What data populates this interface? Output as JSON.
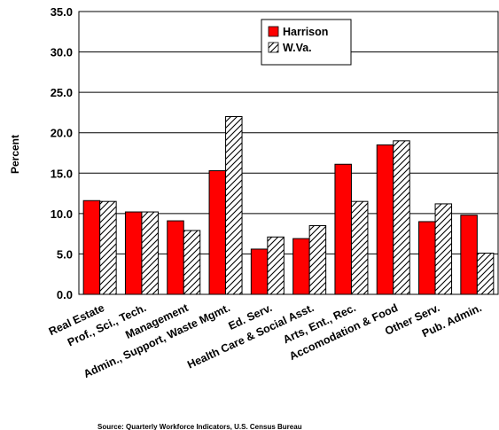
{
  "chart_data": {
    "type": "bar",
    "ylabel": "Percent",
    "ylim": [
      0,
      35
    ],
    "yticks": [
      "0.0",
      "5.0",
      "10.0",
      "15.0",
      "20.0",
      "25.0",
      "30.0",
      "35.0"
    ],
    "grid": true,
    "legend_position": "top-center",
    "categories": [
      "Real Estate",
      "Prof., Sci., Tech.",
      "Management",
      "Admin., Support, Waste Mgmt.",
      "Ed. Serv.",
      "Health Care & Social Asst.",
      "Arts, Ent., Rec.",
      "Accomodation & Food",
      "Other Serv.",
      "Pub. Admin."
    ],
    "series": [
      {
        "name": "Harrison",
        "color": "#ff0000",
        "pattern": "solid",
        "values": [
          11.6,
          10.2,
          9.1,
          15.3,
          5.6,
          6.9,
          16.1,
          18.5,
          9.0,
          9.8
        ]
      },
      {
        "name": "W.Va.",
        "color": "#ffffff",
        "pattern": "diagonal-hatch",
        "values": [
          11.5,
          10.2,
          7.9,
          22.0,
          7.1,
          8.5,
          11.5,
          19.0,
          11.2,
          5.1
        ]
      }
    ],
    "source": "Source: Quarterly Workforce Indicators, U.S. Census Bureau"
  }
}
